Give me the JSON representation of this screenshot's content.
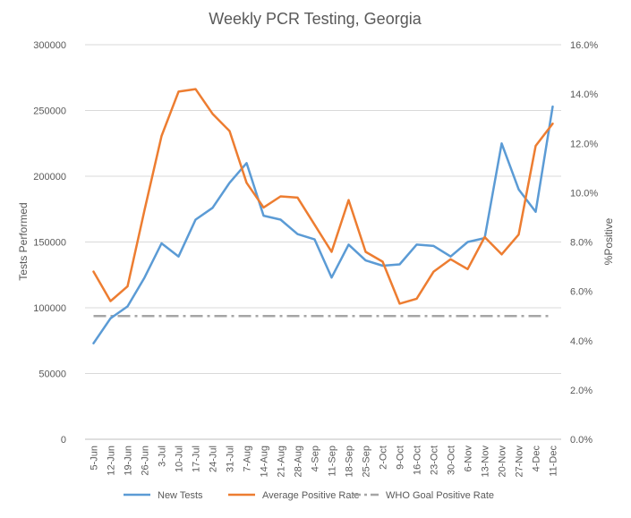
{
  "chart_data": {
    "type": "line",
    "title": "Weekly PCR Testing, Georgia",
    "ylabel": "Tests Performed",
    "y2label": "%Positive",
    "ylim": [
      0,
      300000
    ],
    "y2lim": [
      0,
      16
    ],
    "yticks": [
      "0",
      "50000",
      "100000",
      "150000",
      "200000",
      "250000",
      "300000"
    ],
    "y2ticks": [
      "0.0%",
      "2.0%",
      "4.0%",
      "6.0%",
      "8.0%",
      "10.0%",
      "12.0%",
      "14.0%",
      "16.0%"
    ],
    "grid": true,
    "legend_position": "bottom",
    "categories": [
      "5-Jun",
      "12-Jun",
      "19-Jun",
      "26-Jun",
      "3-Jul",
      "10-Jul",
      "17-Jul",
      "24-Jul",
      "31-Jul",
      "7-Aug",
      "14-Aug",
      "21-Aug",
      "28-Aug",
      "4-Sep",
      "11-Sep",
      "18-Sep",
      "25-Sep",
      "2-Oct",
      "9-Oct",
      "16-Oct",
      "23-Oct",
      "30-Oct",
      "6-Nov",
      "13-Nov",
      "20-Nov",
      "27-Nov",
      "4-Dec",
      "11-Dec"
    ],
    "series": [
      {
        "name": "New Tests",
        "axis": "left",
        "color": "#5B9BD5",
        "values": [
          73000,
          92000,
          101000,
          123000,
          149000,
          139000,
          167000,
          176000,
          195000,
          210000,
          170000,
          167000,
          156000,
          152000,
          123000,
          148000,
          136000,
          132000,
          133000,
          148000,
          147000,
          139000,
          150000,
          153000,
          225000,
          190000,
          173000,
          253000
        ]
      },
      {
        "name": "Average Positive Rate",
        "axis": "right",
        "color": "#ED7D31",
        "values": [
          6.8,
          5.6,
          6.2,
          9.3,
          12.3,
          14.1,
          14.2,
          13.2,
          12.5,
          10.4,
          9.4,
          9.85,
          9.8,
          8.7,
          7.6,
          9.7,
          7.6,
          7.2,
          5.5,
          5.7,
          6.8,
          7.3,
          6.9,
          8.2,
          7.5,
          8.3,
          11.9,
          12.8
        ]
      },
      {
        "name": "WHO Goal Positive Rate",
        "axis": "right",
        "color": "#A5A5A5",
        "dash": true,
        "values": [
          5,
          5,
          5,
          5,
          5,
          5,
          5,
          5,
          5,
          5,
          5,
          5,
          5,
          5,
          5,
          5,
          5,
          5,
          5,
          5,
          5,
          5,
          5,
          5,
          5,
          5,
          5,
          5
        ]
      }
    ]
  }
}
